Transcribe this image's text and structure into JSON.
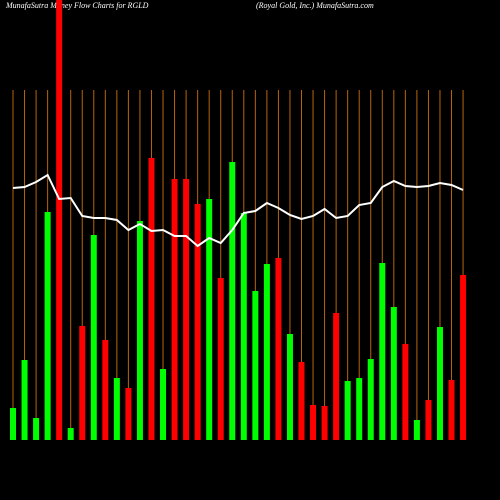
{
  "chart_data": {
    "type": "bar",
    "title": "MunafaSutra  Money Flow  Charts for RGLD",
    "subtitle": "(Royal Gold,  Inc.) MunafaSutra.com",
    "categories": [
      null,
      null,
      null,
      null,
      null,
      null,
      null,
      null,
      null,
      null,
      null,
      null,
      null,
      null,
      null,
      null,
      null,
      null,
      null,
      null,
      null,
      null,
      null,
      null,
      null,
      null,
      null,
      null,
      null,
      null,
      null,
      null,
      null,
      null,
      null,
      null,
      null,
      null,
      null,
      null
    ],
    "series": [
      {
        "name": null,
        "colors": [
          "#00ff00",
          "#00ff00",
          "#00ff00",
          "#00ff00",
          "#ff0000",
          "#00ff00",
          "#ff0000",
          "#00ff00",
          "#ff0000",
          "#00ff00",
          "#ff0000",
          "#00ff00",
          "#ff0000",
          "#00ff00",
          "#ff0000",
          "#ff0000",
          "#ff0000",
          "#00ff00",
          "#ff0000",
          "#00ff00",
          "#00ff00",
          "#00ff00",
          "#00ff00",
          "#ff0000",
          "#00ff00",
          "#ff0000",
          "#ff0000",
          "#ff0000",
          "#ff0000",
          "#00ff00",
          "#00ff00",
          "#00ff00",
          "#00ff00",
          "#00ff00",
          "#ff0000",
          "#00ff00",
          "#ff0000",
          "#00ff00",
          "#ff0000",
          "#ff0000"
        ],
        "values": [
          32,
          80,
          22,
          228,
          440,
          12,
          114,
          205,
          100,
          62,
          52,
          219,
          282,
          71,
          261,
          261,
          236,
          241,
          162,
          278,
          227,
          149,
          176,
          182,
          106,
          78,
          35,
          34,
          127,
          59,
          62,
          81,
          177,
          133,
          96,
          20,
          40,
          113,
          60,
          165
        ]
      },
      {
        "name": null,
        "color": "#ffffff",
        "values": [
          252,
          253,
          258,
          265,
          241,
          242,
          224,
          222,
          222,
          220,
          210,
          216,
          209,
          210,
          204,
          204,
          194,
          202,
          197,
          210,
          227,
          229,
          237,
          232,
          225,
          221,
          224,
          231,
          222,
          224,
          235,
          237,
          253,
          259,
          254,
          253,
          254,
          257,
          255,
          250
        ]
      }
    ],
    "ylim": [
      0,
      440
    ],
    "guide_color": "#b8650a"
  }
}
